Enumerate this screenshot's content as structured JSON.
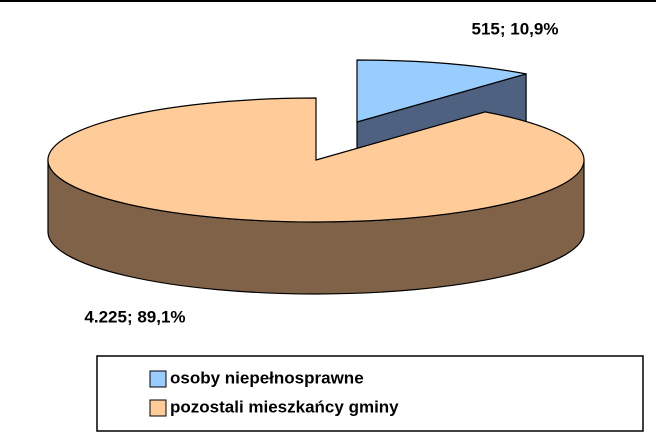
{
  "chart_data": {
    "type": "pie3d",
    "categories": [
      "osoby niepełnosprawne",
      "pozostali mieszkańcy gminy"
    ],
    "values": [
      515,
      4225
    ],
    "value_labels": [
      "515; 10,9%",
      "4.225; 89,1%"
    ],
    "colors": [
      "#99ccff",
      "#ffcc99"
    ],
    "side_colors": [
      "#4f6180",
      "#7f6248"
    ],
    "legend": "bottom"
  }
}
